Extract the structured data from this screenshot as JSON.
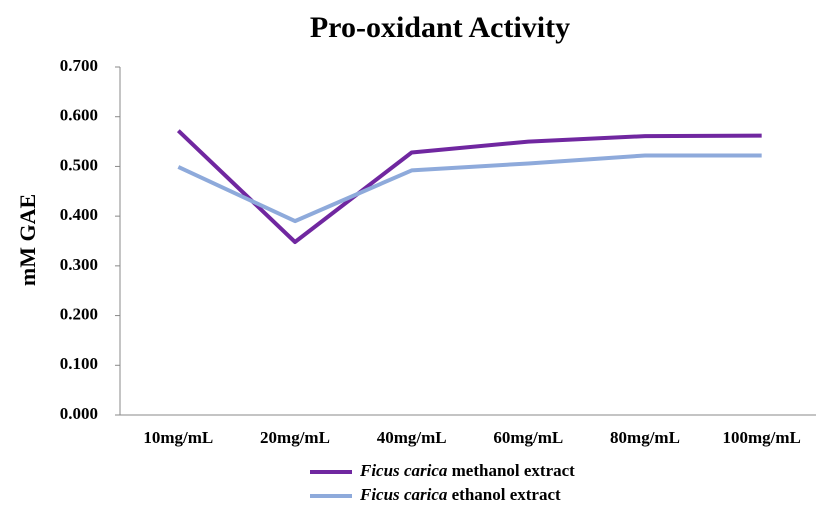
{
  "chart_data": {
    "type": "line",
    "title": "Pro-oxidant Activity",
    "y_label": "mM GAE",
    "categories": [
      "10mg/mL",
      "20mg/mL",
      "40mg/mL",
      "60mg/mL",
      "80mg/mL",
      "100mg/mL"
    ],
    "series": [
      {
        "name": "Ficus carica methanol extract",
        "color": "#7027a0",
        "values": [
          0.572,
          0.348,
          0.528,
          0.55,
          0.561,
          0.562
        ]
      },
      {
        "name": "Ficus carica ethanol extract",
        "color": "#8eaadb",
        "values": [
          0.499,
          0.39,
          0.492,
          0.506,
          0.522,
          0.522
        ]
      }
    ],
    "ylim": [
      0,
      0.7
    ],
    "yticks": [
      {
        "value": 0,
        "label": "0.000"
      },
      {
        "value": 0.1,
        "label": "0.100"
      },
      {
        "value": 0.2,
        "label": "0.200"
      },
      {
        "value": 0.3,
        "label": "0.300"
      },
      {
        "value": 0.4,
        "label": "0.400"
      },
      {
        "value": 0.5,
        "label": "0.500"
      },
      {
        "value": 0.6,
        "label": "0.600"
      },
      {
        "value": 0.7,
        "label": "0.700"
      }
    ],
    "grid": false,
    "legend": "bottom"
  }
}
